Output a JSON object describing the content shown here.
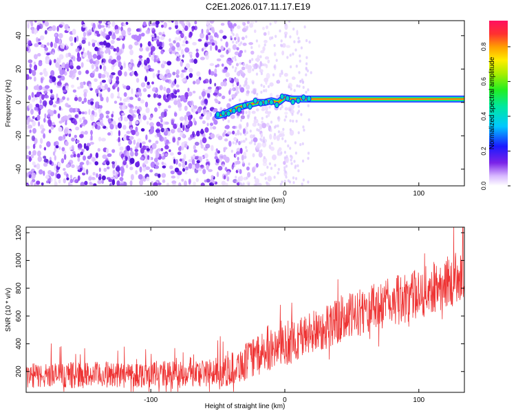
{
  "title": "C2E1.2026.017.11.17.E19",
  "chart_data": [
    {
      "type": "heatmap",
      "title": "C2E1.2026.017.11.17.E19",
      "xlabel": "Height of straight line (km)",
      "ylabel": "Frequency (Hz)",
      "xlim": [
        -193,
        134
      ],
      "ylim": [
        -50,
        49
      ],
      "xticks": [
        -100,
        0,
        100
      ],
      "xtick_labels": [
        "-100",
        "0",
        "100"
      ],
      "yticks": [
        -40,
        -20,
        0,
        20,
        40
      ],
      "ytick_labels": [
        "-40",
        "-20",
        "0",
        "20",
        "40"
      ],
      "grid": false,
      "description_series": [
        {
          "name": "dominant frequency trace",
          "x": [
            -50,
            -45,
            -40,
            -35,
            -30,
            -25,
            -20,
            -15,
            -10,
            -5,
            0,
            5,
            10,
            20,
            40,
            60,
            80,
            100,
            120,
            134
          ],
          "y": [
            -8,
            -7,
            -5,
            -3,
            -2,
            -1,
            0,
            0,
            1,
            0,
            3,
            2,
            2,
            2,
            2,
            2,
            2,
            2,
            2,
            2
          ]
        }
      ],
      "colorbar": {
        "label": "Normalized spectral amplitude",
        "range": [
          0.0,
          0.95
        ],
        "ticks": [
          0.0,
          0.2,
          0.4,
          0.6,
          0.8
        ],
        "tick_labels": [
          "0.0",
          "0.2",
          "0.4",
          "0.6",
          "0.8"
        ]
      }
    },
    {
      "type": "line",
      "xlabel": "Height of straight line (km)",
      "ylabel": "SNR (10 * v/v)",
      "xlim": [
        -193,
        134
      ],
      "ylim": [
        50,
        1240
      ],
      "xticks": [
        -100,
        0,
        100
      ],
      "xtick_labels": [
        "-100",
        "0",
        "100"
      ],
      "yticks": [
        200,
        400,
        600,
        800,
        1000,
        1200
      ],
      "ytick_labels": [
        "200",
        "400",
        "600",
        "800",
        "1000",
        "1200"
      ],
      "grid": false,
      "series": [
        {
          "name": "SNR",
          "color": "#ee3333",
          "envelope_x": [
            -193,
            -150,
            -100,
            -60,
            -45,
            -35,
            -20,
            0,
            20,
            40,
            60,
            80,
            100,
            120,
            134
          ],
          "envelope_mean": [
            170,
            175,
            180,
            190,
            200,
            240,
            320,
            390,
            480,
            560,
            640,
            700,
            760,
            840,
            900
          ],
          "envelope_halfwidth": [
            90,
            95,
            95,
            100,
            110,
            130,
            140,
            150,
            160,
            170,
            170,
            180,
            180,
            190,
            200
          ]
        }
      ]
    }
  ],
  "colors": {
    "accent": "#ee3333",
    "speckle": "#6a22e6"
  }
}
